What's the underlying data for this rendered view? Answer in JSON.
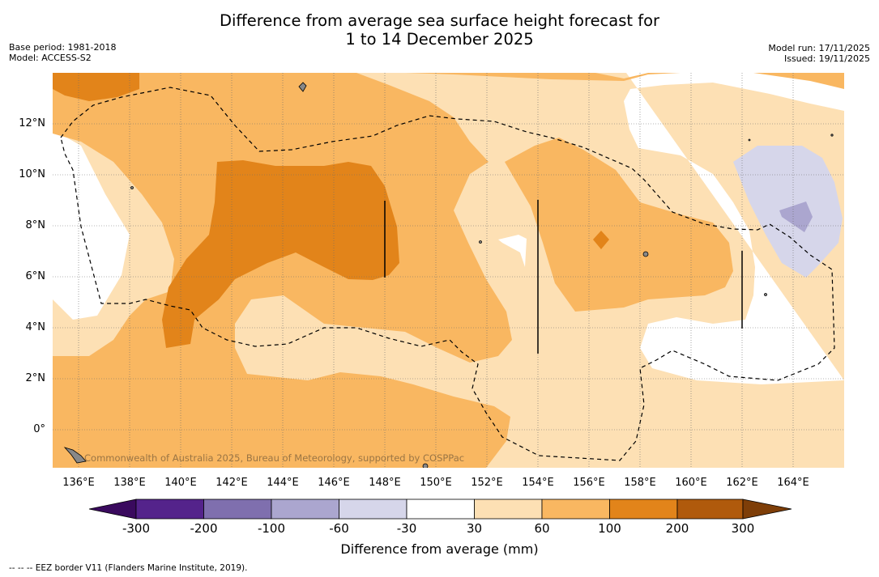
{
  "title_line1": "Difference from average sea surface height forecast for",
  "title_line2": "1 to 14 December 2025",
  "base_period": "Base period: 1981-2018",
  "model": "Model: ACCESS-S2",
  "model_run": "Model run: 17/11/2025",
  "issued": "Issued: 19/11/2025",
  "lat_labels": [
    "12°N",
    "10°N",
    "8°N",
    "6°N",
    "4°N",
    "2°N",
    "0°"
  ],
  "lon_labels": [
    "136°E",
    "138°E",
    "140°E",
    "142°E",
    "144°E",
    "146°E",
    "148°E",
    "150°E",
    "152°E",
    "154°E",
    "156°E",
    "158°E",
    "160°E",
    "162°E",
    "164°E"
  ],
  "colorbar": {
    "ticks": [
      "-300",
      "-200",
      "-100",
      "-60",
      "-30",
      "30",
      "60",
      "100",
      "200",
      "300"
    ],
    "colors": [
      "#3a0a5e",
      "#54238b",
      "#7f6fae",
      "#aba6cf",
      "#d6d6ea",
      "#ffffff",
      "#fde0b4",
      "#f9b761",
      "#e2841a",
      "#b05a0c",
      "#7e3e08"
    ],
    "title": "Difference from average (mm)"
  },
  "watermark": "Commonwealth of Australia 2025, Bureau of Meteorology, supported by COSPPac",
  "footnote": "--  --  -- EEZ border V11 (Flanders Marine Institute, 2019)."
}
